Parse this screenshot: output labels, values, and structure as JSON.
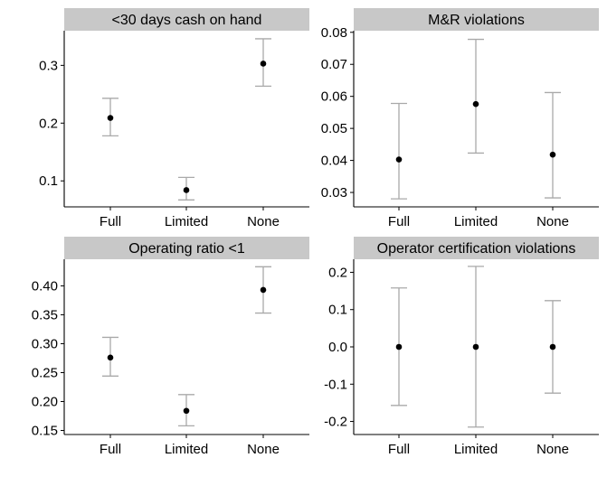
{
  "chart_data": [
    {
      "type": "scatter",
      "title": "<30 days cash on hand",
      "categories": [
        "Full",
        "Limited",
        "None"
      ],
      "estimates": [
        0.209,
        0.084,
        0.303
      ],
      "lower": [
        0.178,
        0.067,
        0.264
      ],
      "upper": [
        0.243,
        0.106,
        0.346
      ],
      "yticks": [
        0.1,
        0.2,
        0.3
      ],
      "ytick_labels": [
        "0.1",
        "0.2",
        "0.3"
      ],
      "ylim": [
        0.055,
        0.36
      ],
      "xlabel": "",
      "ylabel": "",
      "grid": false
    },
    {
      "type": "scatter",
      "title": "M&R violations",
      "categories": [
        "Full",
        "Limited",
        "None"
      ],
      "estimates": [
        0.0403,
        0.0576,
        0.0418
      ],
      "lower": [
        0.028,
        0.0423,
        0.0283
      ],
      "upper": [
        0.0578,
        0.0778,
        0.0612
      ],
      "yticks": [
        0.03,
        0.04,
        0.05,
        0.06,
        0.07,
        0.08
      ],
      "ytick_labels": [
        "0.03",
        "0.04",
        "0.05",
        "0.06",
        "0.07",
        "0.08"
      ],
      "ylim": [
        0.0255,
        0.0805
      ],
      "xlabel": "",
      "ylabel": "",
      "grid": false
    },
    {
      "type": "scatter",
      "title": "Operating ratio <1",
      "categories": [
        "Full",
        "Limited",
        "None"
      ],
      "estimates": [
        0.276,
        0.184,
        0.393
      ],
      "lower": [
        0.244,
        0.158,
        0.353
      ],
      "upper": [
        0.311,
        0.212,
        0.433
      ],
      "yticks": [
        0.15,
        0.2,
        0.25,
        0.3,
        0.35,
        0.4
      ],
      "ytick_labels": [
        "0.15",
        "0.20",
        "0.25",
        "0.30",
        "0.35",
        "0.40"
      ],
      "ylim": [
        0.143,
        0.446
      ],
      "xlabel": "",
      "ylabel": "",
      "grid": false
    },
    {
      "type": "scatter",
      "title": "Operator certification violations",
      "categories": [
        "Full",
        "Limited",
        "None"
      ],
      "estimates": [
        0.0,
        0.0,
        0.0
      ],
      "lower": [
        -0.157,
        -0.215,
        -0.124
      ],
      "upper": [
        0.158,
        0.216,
        0.124
      ],
      "yticks": [
        -0.2,
        -0.1,
        0.0,
        0.1,
        0.2
      ],
      "ytick_labels": [
        "-0.2",
        "-0.1",
        "0.0",
        "0.1",
        "0.2"
      ],
      "ylim": [
        -0.235,
        0.235
      ],
      "xlabel": "",
      "ylabel": "",
      "grid": false
    }
  ],
  "colors": {
    "strip_background": "#c8c8c8",
    "points": "#000000",
    "error_bars": "#a9a9a9",
    "axes": "#000000"
  }
}
